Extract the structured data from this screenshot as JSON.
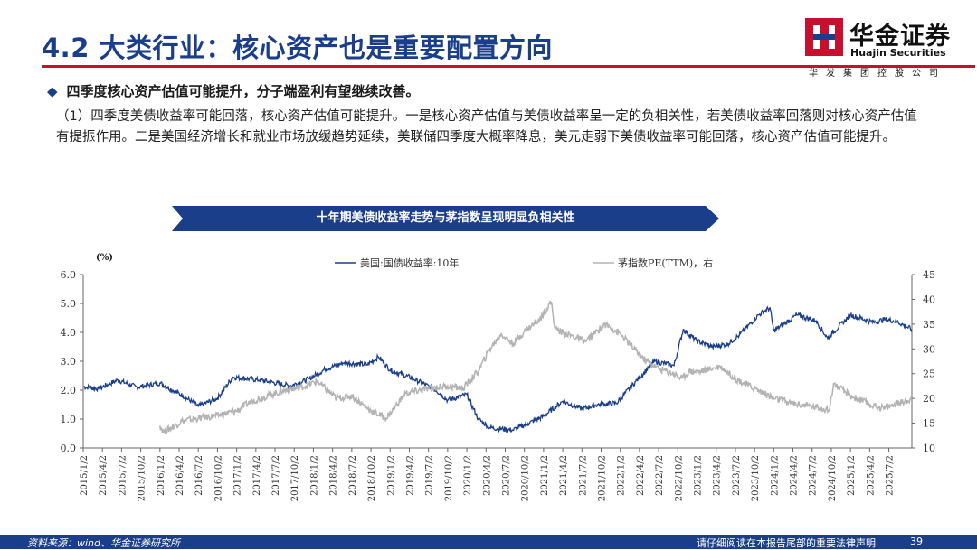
{
  "header": {
    "title": "4.2 大类行业：核心资产也是重要配置方向",
    "logo_cn": "华金证券",
    "logo_en": "Huajin Securities",
    "logo_sub": "华发集团控股公司"
  },
  "bullet": "四季度核心资产估值可能提升，分子端盈利有望继续改善。",
  "paragraph": "（1）四季度美债收益率可能回落，核心资产估值可能提升。一是核心资产估值与美债收益率呈一定的负相关性，若美债收益率回落则对核心资产估值有提振作用。二是美国经济增长和就业市场放缓趋势延续，美联储四季度大概率降息，美元走弱下美债收益率可能回落，核心资产估值可能提升。",
  "banner": "十年期美债收益率走势与茅指数呈现明显负相关性",
  "footer": {
    "source": "资料来源：wind、华金证券研究所",
    "disclaimer": "请仔细阅读在本报告尾部的重要法律声明",
    "page": "39"
  },
  "colors": {
    "brand_blue": "#1b3e8a",
    "brand_red": "#c8102e",
    "series_right": "#b3b3b3"
  },
  "chart_data": {
    "type": "line",
    "y_unit_label": "(%)",
    "ylim_left": [
      0,
      6
    ],
    "ylim_right": [
      10,
      45
    ],
    "yticks_left": [
      "0.0",
      "1.0",
      "2.0",
      "3.0",
      "4.0",
      "5.0",
      "6.0"
    ],
    "yticks_right": [
      "10",
      "15",
      "20",
      "25",
      "30",
      "35",
      "40",
      "45"
    ],
    "xticks": [
      "2015/1/2",
      "2015/4/2",
      "2015/7/2",
      "2015/10/2",
      "2016/1/2",
      "2016/4/2",
      "2016/7/2",
      "2016/10/2",
      "2017/1/2",
      "2017/4/2",
      "2017/7/2",
      "2017/10/2",
      "2018/1/2",
      "2018/4/2",
      "2018/7/2",
      "2018/10/2",
      "2019/1/2",
      "2019/4/2",
      "2019/7/2",
      "2019/10/2",
      "2020/1/2",
      "2020/4/2",
      "2020/7/2",
      "2020/10/2",
      "2021/1/2",
      "2021/4/2",
      "2021/7/2",
      "2021/10/2",
      "2022/1/2",
      "2022/4/2",
      "2022/7/2",
      "2022/10/2",
      "2023/1/2",
      "2023/4/2",
      "2023/7/2",
      "2023/10/2",
      "2024/1/2",
      "2024/4/2",
      "2024/7/2",
      "2024/10/2",
      "2025/1/2",
      "2025/4/2",
      "2025/7/2"
    ],
    "series": [
      {
        "name": "美国:国债收益率:10年",
        "axis": "left",
        "color": "#1b3e8a",
        "x": [
          2015.0,
          2015.2,
          2015.45,
          2015.7,
          2016.0,
          2016.3,
          2016.5,
          2016.75,
          2016.95,
          2017.3,
          2017.7,
          2017.95,
          2018.15,
          2018.4,
          2018.7,
          2018.85,
          2019.0,
          2019.3,
          2019.6,
          2019.75,
          2020.0,
          2020.15,
          2020.3,
          2020.6,
          2020.8,
          2021.0,
          2021.25,
          2021.5,
          2021.7,
          2021.95,
          2022.2,
          2022.45,
          2022.7,
          2022.82,
          2023.0,
          2023.2,
          2023.4,
          2023.55,
          2023.8,
          2023.95,
          2024.0,
          2024.3,
          2024.55,
          2024.7,
          2024.85,
          2025.0,
          2025.3,
          2025.45,
          2025.6,
          2025.8
        ],
        "y": [
          2.12,
          2.05,
          2.35,
          2.1,
          2.25,
          1.8,
          1.45,
          1.72,
          2.45,
          2.35,
          2.15,
          2.4,
          2.72,
          2.95,
          2.88,
          3.15,
          2.7,
          2.4,
          2.0,
          1.65,
          1.85,
          1.0,
          0.7,
          0.62,
          0.85,
          1.1,
          1.62,
          1.35,
          1.5,
          1.55,
          2.3,
          3.0,
          2.85,
          4.1,
          3.7,
          3.5,
          3.6,
          3.9,
          4.6,
          4.85,
          4.05,
          4.6,
          4.4,
          3.8,
          4.2,
          4.6,
          4.35,
          4.45,
          4.38,
          4.1
        ]
      },
      {
        "name": "茅指数PE(TTM)，右",
        "axis": "right",
        "color": "#b3b3b3",
        "x": [
          2016.0,
          2016.05,
          2016.3,
          2016.5,
          2016.75,
          2017.0,
          2017.2,
          2017.6,
          2017.9,
          2018.05,
          2018.3,
          2018.5,
          2018.75,
          2018.95,
          2019.2,
          2019.5,
          2019.75,
          2019.95,
          2020.15,
          2020.3,
          2020.45,
          2020.6,
          2020.75,
          2020.95,
          2021.1,
          2021.15,
          2021.3,
          2021.55,
          2021.8,
          2022.0,
          2022.3,
          2022.5,
          2022.7,
          2022.8,
          2022.9,
          2023.05,
          2023.3,
          2023.5,
          2023.75,
          2024.0,
          2024.25,
          2024.45,
          2024.65,
          2024.72,
          2024.78,
          2025.0,
          2025.3,
          2025.45,
          2025.6,
          2025.75,
          2025.8
        ],
        "y": [
          14.5,
          13.2,
          15.5,
          16.0,
          16.5,
          17.5,
          19.5,
          21.5,
          22.5,
          23.5,
          20.0,
          20.5,
          17.5,
          16.0,
          21.0,
          22.0,
          22.5,
          22.0,
          25.5,
          30.0,
          33.0,
          31.0,
          33.5,
          36.0,
          39.5,
          34.0,
          33.0,
          31.5,
          35.0,
          33.0,
          28.0,
          26.0,
          25.0,
          24.0,
          25.5,
          25.5,
          26.5,
          24.0,
          22.0,
          20.0,
          19.0,
          18.5,
          18.0,
          17.5,
          23.0,
          20.5,
          18.5,
          18.0,
          19.0,
          19.5,
          20.0
        ]
      }
    ]
  }
}
